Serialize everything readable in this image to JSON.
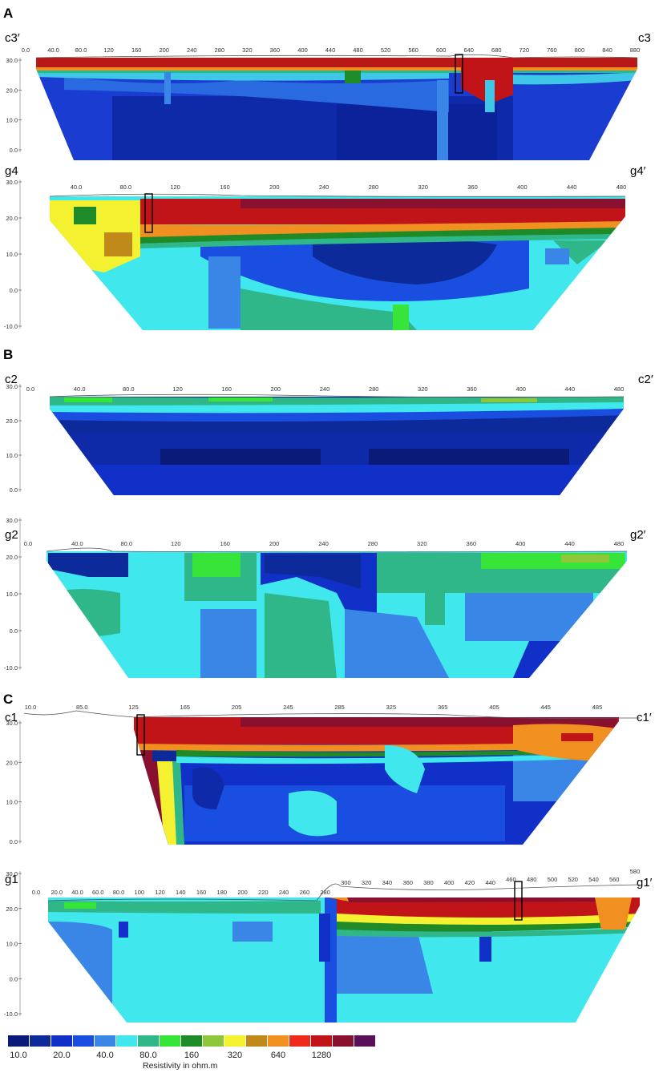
{
  "figure": {
    "panel_labels": [
      "A",
      "B",
      "C"
    ]
  },
  "chart_data": [
    {
      "type": "heatmap",
      "panel": "A",
      "start_label": "c3′",
      "end_label": "c3",
      "x_ticks": [
        "0.0",
        "40.0",
        "80.0",
        "120",
        "160",
        "200",
        "240",
        "280",
        "320",
        "360",
        "400",
        "440",
        "480",
        "520",
        "560",
        "600",
        "640",
        "680",
        "720",
        "760",
        "800",
        "840",
        "880"
      ],
      "y_ticks": [
        "30.0",
        "20.0",
        "10.0",
        "0.0"
      ],
      "ylim": [
        0,
        32
      ],
      "dominant_classes": [
        "high-resistivity surface layer (640-1280+)",
        "low-resistivity body (10-40)"
      ],
      "marker_x": 640
    },
    {
      "type": "heatmap",
      "panel": "A",
      "start_label": "g4",
      "end_label": "g4′",
      "x_ticks": [
        "40.0",
        "80.0",
        "120",
        "160",
        "200",
        "240",
        "280",
        "320",
        "360",
        "400",
        "440",
        "480"
      ],
      "y_ticks": [
        "30.0",
        "20.0",
        "10.0",
        "0.0",
        "-10.0"
      ],
      "ylim": [
        -10,
        30
      ],
      "marker_x": 85
    },
    {
      "type": "heatmap",
      "panel": "B",
      "start_label": "c2",
      "end_label": "c2′",
      "x_ticks": [
        "0.0",
        "40.0",
        "80.0",
        "120",
        "160",
        "200",
        "240",
        "280",
        "320",
        "360",
        "400",
        "440",
        "480"
      ],
      "y_ticks": [
        "30.0",
        "20.0",
        "10.0",
        "0.0"
      ],
      "ylim": [
        0,
        30
      ]
    },
    {
      "type": "heatmap",
      "panel": "B",
      "start_label": "g2",
      "end_label": "g2′",
      "x_ticks": [
        "0.0",
        "40.0",
        "80.0",
        "120",
        "160",
        "200",
        "240",
        "280",
        "320",
        "360",
        "400",
        "440",
        "480"
      ],
      "y_ticks": [
        "30.0",
        "20.0",
        "10.0",
        "0.0",
        "-10.0"
      ],
      "ylim": [
        -10,
        30
      ]
    },
    {
      "type": "heatmap",
      "panel": "C",
      "start_label": "c1",
      "end_label": "c1′",
      "x_ticks": [
        "10.0",
        "85.0",
        "125",
        "165",
        "205",
        "245",
        "285",
        "325",
        "365",
        "405",
        "445",
        "485"
      ],
      "y_ticks": [
        "30.0",
        "20.0",
        "10.0",
        "0.0"
      ],
      "ylim": [
        0,
        32
      ],
      "marker_x": 110
    },
    {
      "type": "heatmap",
      "panel": "C",
      "start_label": "g1",
      "end_label": "g1′",
      "x_ticks": [
        "0.0",
        "20.0",
        "40.0",
        "60.0",
        "80.0",
        "100",
        "120",
        "140",
        "160",
        "180",
        "200",
        "220",
        "240",
        "260",
        "280",
        "300",
        "320",
        "340",
        "360",
        "380",
        "400",
        "420",
        "440",
        "460",
        "480",
        "500",
        "520",
        "540",
        "560",
        "580"
      ],
      "y_ticks": [
        "30.0",
        "20.0",
        "10.0",
        "0.0",
        "-10.0"
      ],
      "ylim": [
        -10,
        30
      ],
      "marker_x": 470
    }
  ],
  "legend": {
    "title": "Resistivity in ohm.m",
    "colors": [
      "#0a1a78",
      "#0c2a9a",
      "#1030c8",
      "#1a4ee0",
      "#3a86e6",
      "#40e8ee",
      "#2fb78a",
      "#37e43a",
      "#1e8a28",
      "#8ec83a",
      "#f4f230",
      "#c08a1a",
      "#f09020",
      "#ee2a18",
      "#c01418",
      "#8a1030",
      "#5a1058"
    ],
    "tick_labels": [
      {
        "after_swatch": 0,
        "label": "10.0"
      },
      {
        "after_swatch": 2,
        "label": "20.0"
      },
      {
        "after_swatch": 4,
        "label": "40.0"
      },
      {
        "after_swatch": 6,
        "label": "80.0"
      },
      {
        "after_swatch": 8,
        "label": "160"
      },
      {
        "after_swatch": 10,
        "label": "320"
      },
      {
        "after_swatch": 12,
        "label": "640"
      },
      {
        "after_swatch": 14,
        "label": "1280"
      }
    ]
  }
}
